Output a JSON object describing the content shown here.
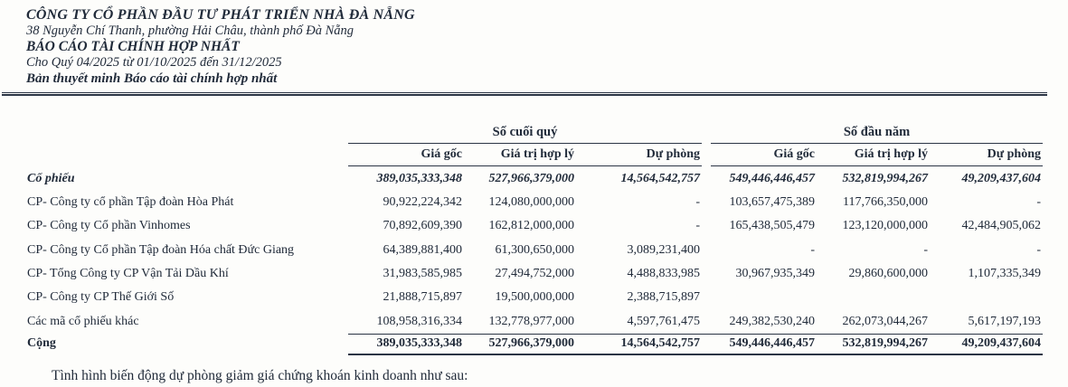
{
  "document_header": {
    "company_name": "CÔNG TY CỔ PHẦN ĐẦU TƯ PHÁT TRIỂN NHÀ ĐÀ NẴNG",
    "address": "38 Nguyễn Chí Thanh, phường Hải Châu, thành phố Đà Nẵng",
    "report_title": "BÁO CÁO TÀI CHÍNH HỢP NHẤT",
    "period": "Cho Quý 04/2025 từ 01/10/2025 đến 31/12/2025",
    "subtitle": "Bản thuyết minh Báo cáo tài chính hợp nhất"
  },
  "table": {
    "groups": [
      {
        "label": "Số cuối quý"
      },
      {
        "label": "Số đầu năm"
      }
    ],
    "subheaders": [
      "Giá gốc",
      "Giá trị hợp lý",
      "Dự phòng",
      "Giá gốc",
      "Giá trị hợp lý",
      "Dự phòng"
    ],
    "summary_row": {
      "label": "Cổ phiếu",
      "values": [
        "389,035,333,348",
        "527,966,379,000",
        "14,564,542,757",
        "549,446,446,457",
        "532,819,994,267",
        "49,209,437,604"
      ]
    },
    "rows": [
      {
        "label": "CP- Công ty cổ phần Tập đoàn Hòa Phát",
        "values": [
          "90,922,224,342",
          "124,080,000,000",
          "-",
          "103,657,475,389",
          "117,766,350,000",
          "-"
        ]
      },
      {
        "label": "CP- Công ty Cổ phần Vinhomes",
        "values": [
          "70,892,609,390",
          "162,812,000,000",
          "-",
          "165,438,505,479",
          "123,120,000,000",
          "42,484,905,062"
        ]
      },
      {
        "label": "CP- Công ty Cổ phần Tập đoàn Hóa chất Đức Giang",
        "values": [
          "64,389,881,400",
          "61,300,650,000",
          "3,089,231,400",
          "-",
          "-",
          "-"
        ]
      },
      {
        "label": "CP- Tổng Công ty CP Vận Tải Dầu Khí",
        "values": [
          "31,983,585,985",
          "27,494,752,000",
          "4,488,833,985",
          "30,967,935,349",
          "29,860,600,000",
          "1,107,335,349"
        ]
      },
      {
        "label": "CP- Công ty CP Thế Giới Số",
        "values": [
          "21,888,715,897",
          "19,500,000,000",
          "2,388,715,897",
          "",
          "",
          ""
        ]
      },
      {
        "label": "Các mã cổ phiếu khác",
        "values": [
          "108,958,316,334",
          "132,778,977,000",
          "4,597,761,475",
          "249,382,530,240",
          "262,073,044,267",
          "5,617,197,193"
        ]
      }
    ],
    "total_row": {
      "label": "Cộng",
      "values": [
        "389,035,333,348",
        "527,966,379,000",
        "14,564,542,757",
        "549,446,446,457",
        "532,819,994,267",
        "49,209,437,604"
      ]
    }
  },
  "footer_note": "Tình hình biến động dự phòng giảm giá chứng khoán kinh doanh như sau:"
}
